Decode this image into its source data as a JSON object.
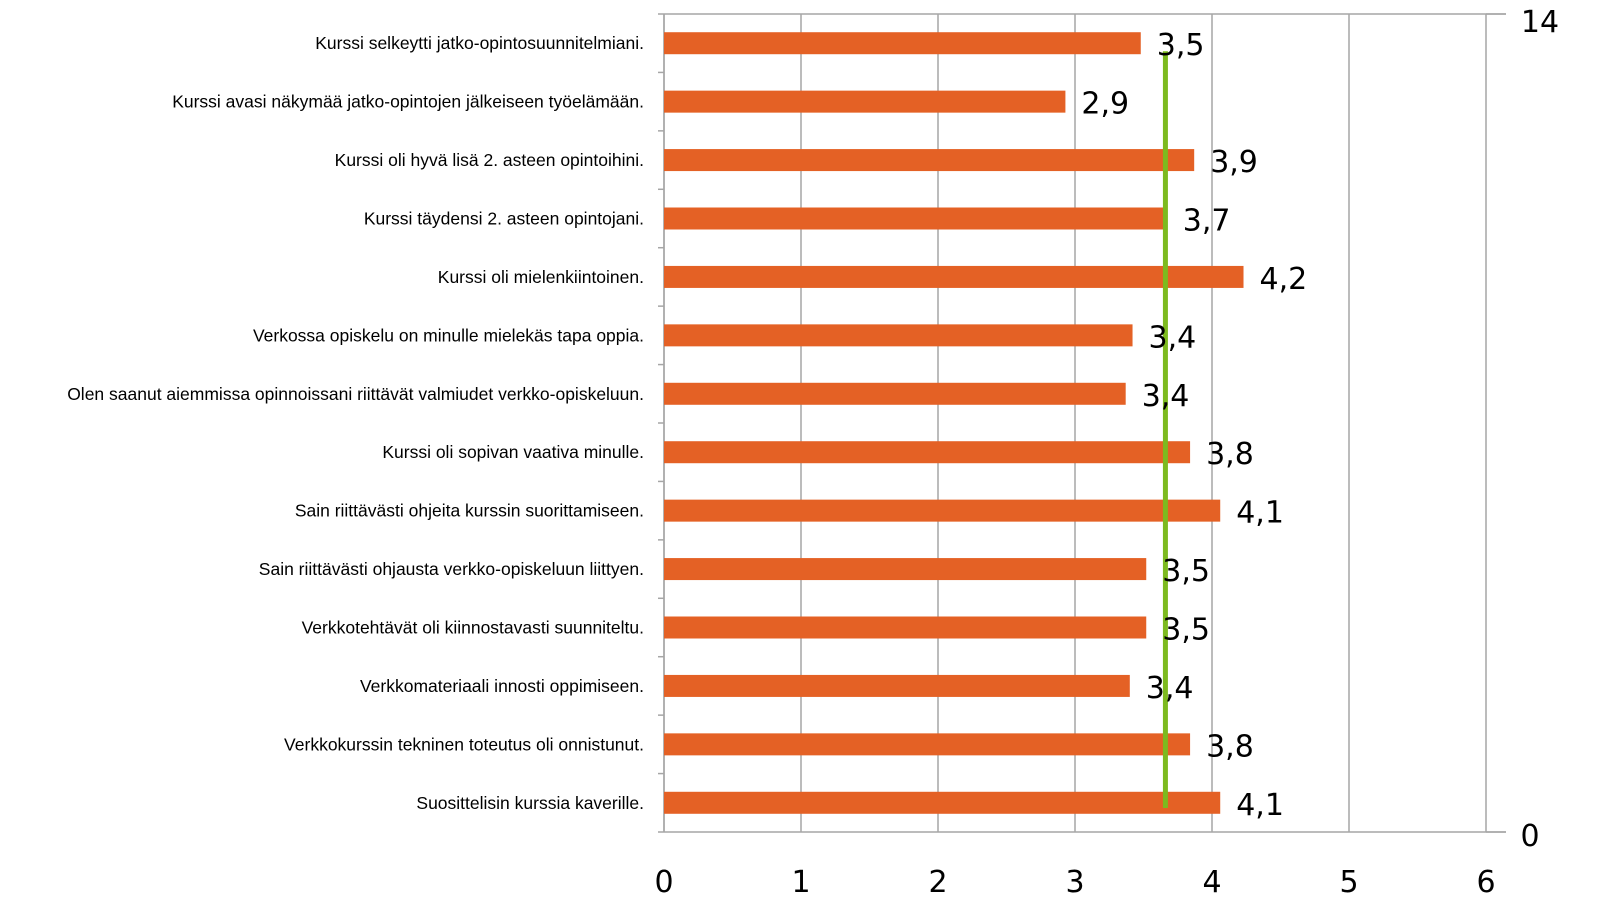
{
  "chart_data": {
    "type": "bar",
    "orientation": "horizontal",
    "categories": [
      "Kurssi selkeytti jatko-opintosuunnitelmiani.",
      "Kurssi avasi näkymää jatko-opintojen jälkeiseen työelämään.",
      "Kurssi oli hyvä lisä 2. asteen opintoihini.",
      "Kurssi täydensi 2. asteen opintojani.",
      "Kurssi oli mielenkiintoinen.",
      "Verkossa opiskelu on minulle mielekäs tapa oppia.",
      "Olen saanut aiemmissa opinnoissani riittävät valmiudet verkko-opiskeluun.",
      "Kurssi oli sopivan vaativa minulle.",
      "Sain riittävästi ohjeita kurssin suorittamiseen.",
      "Sain riittävästi ohjausta verkko-opiskeluun liittyen.",
      "Verkkotehtävät oli kiinnostavasti suunniteltu.",
      "Verkkomateriaali innosti oppimiseen.",
      "Verkkokurssin tekninen toteutus oli onnistunut.",
      "Suosittelisin kurssia kaverille."
    ],
    "values": [
      3.48,
      2.93,
      3.87,
      3.67,
      4.23,
      3.42,
      3.37,
      3.84,
      4.06,
      3.52,
      3.52,
      3.4,
      3.84,
      4.06
    ],
    "value_labels": [
      "3,5",
      "2,9",
      "3,9",
      "3,7",
      "4,2",
      "3,4",
      "3,4",
      "3,8",
      "4,1",
      "3,5",
      "3,5",
      "3,4",
      "3,8",
      "4,1"
    ],
    "xlim": [
      0,
      6
    ],
    "x_ticks": [
      "0",
      "1",
      "2",
      "3",
      "4",
      "5",
      "6"
    ],
    "secondary_axis": {
      "range": [
        0,
        14
      ],
      "tick_labels": [
        "0",
        "14"
      ],
      "position": "right"
    },
    "reference_line": {
      "x": 3.66,
      "y_range": [
        0,
        13
      ]
    },
    "colors": {
      "bar": "#E46125",
      "reference_line": "#7DBA1F",
      "grid": "#A6A6A6"
    },
    "grid": true,
    "legend": false,
    "title": "",
    "xlabel": "",
    "ylabel": ""
  }
}
